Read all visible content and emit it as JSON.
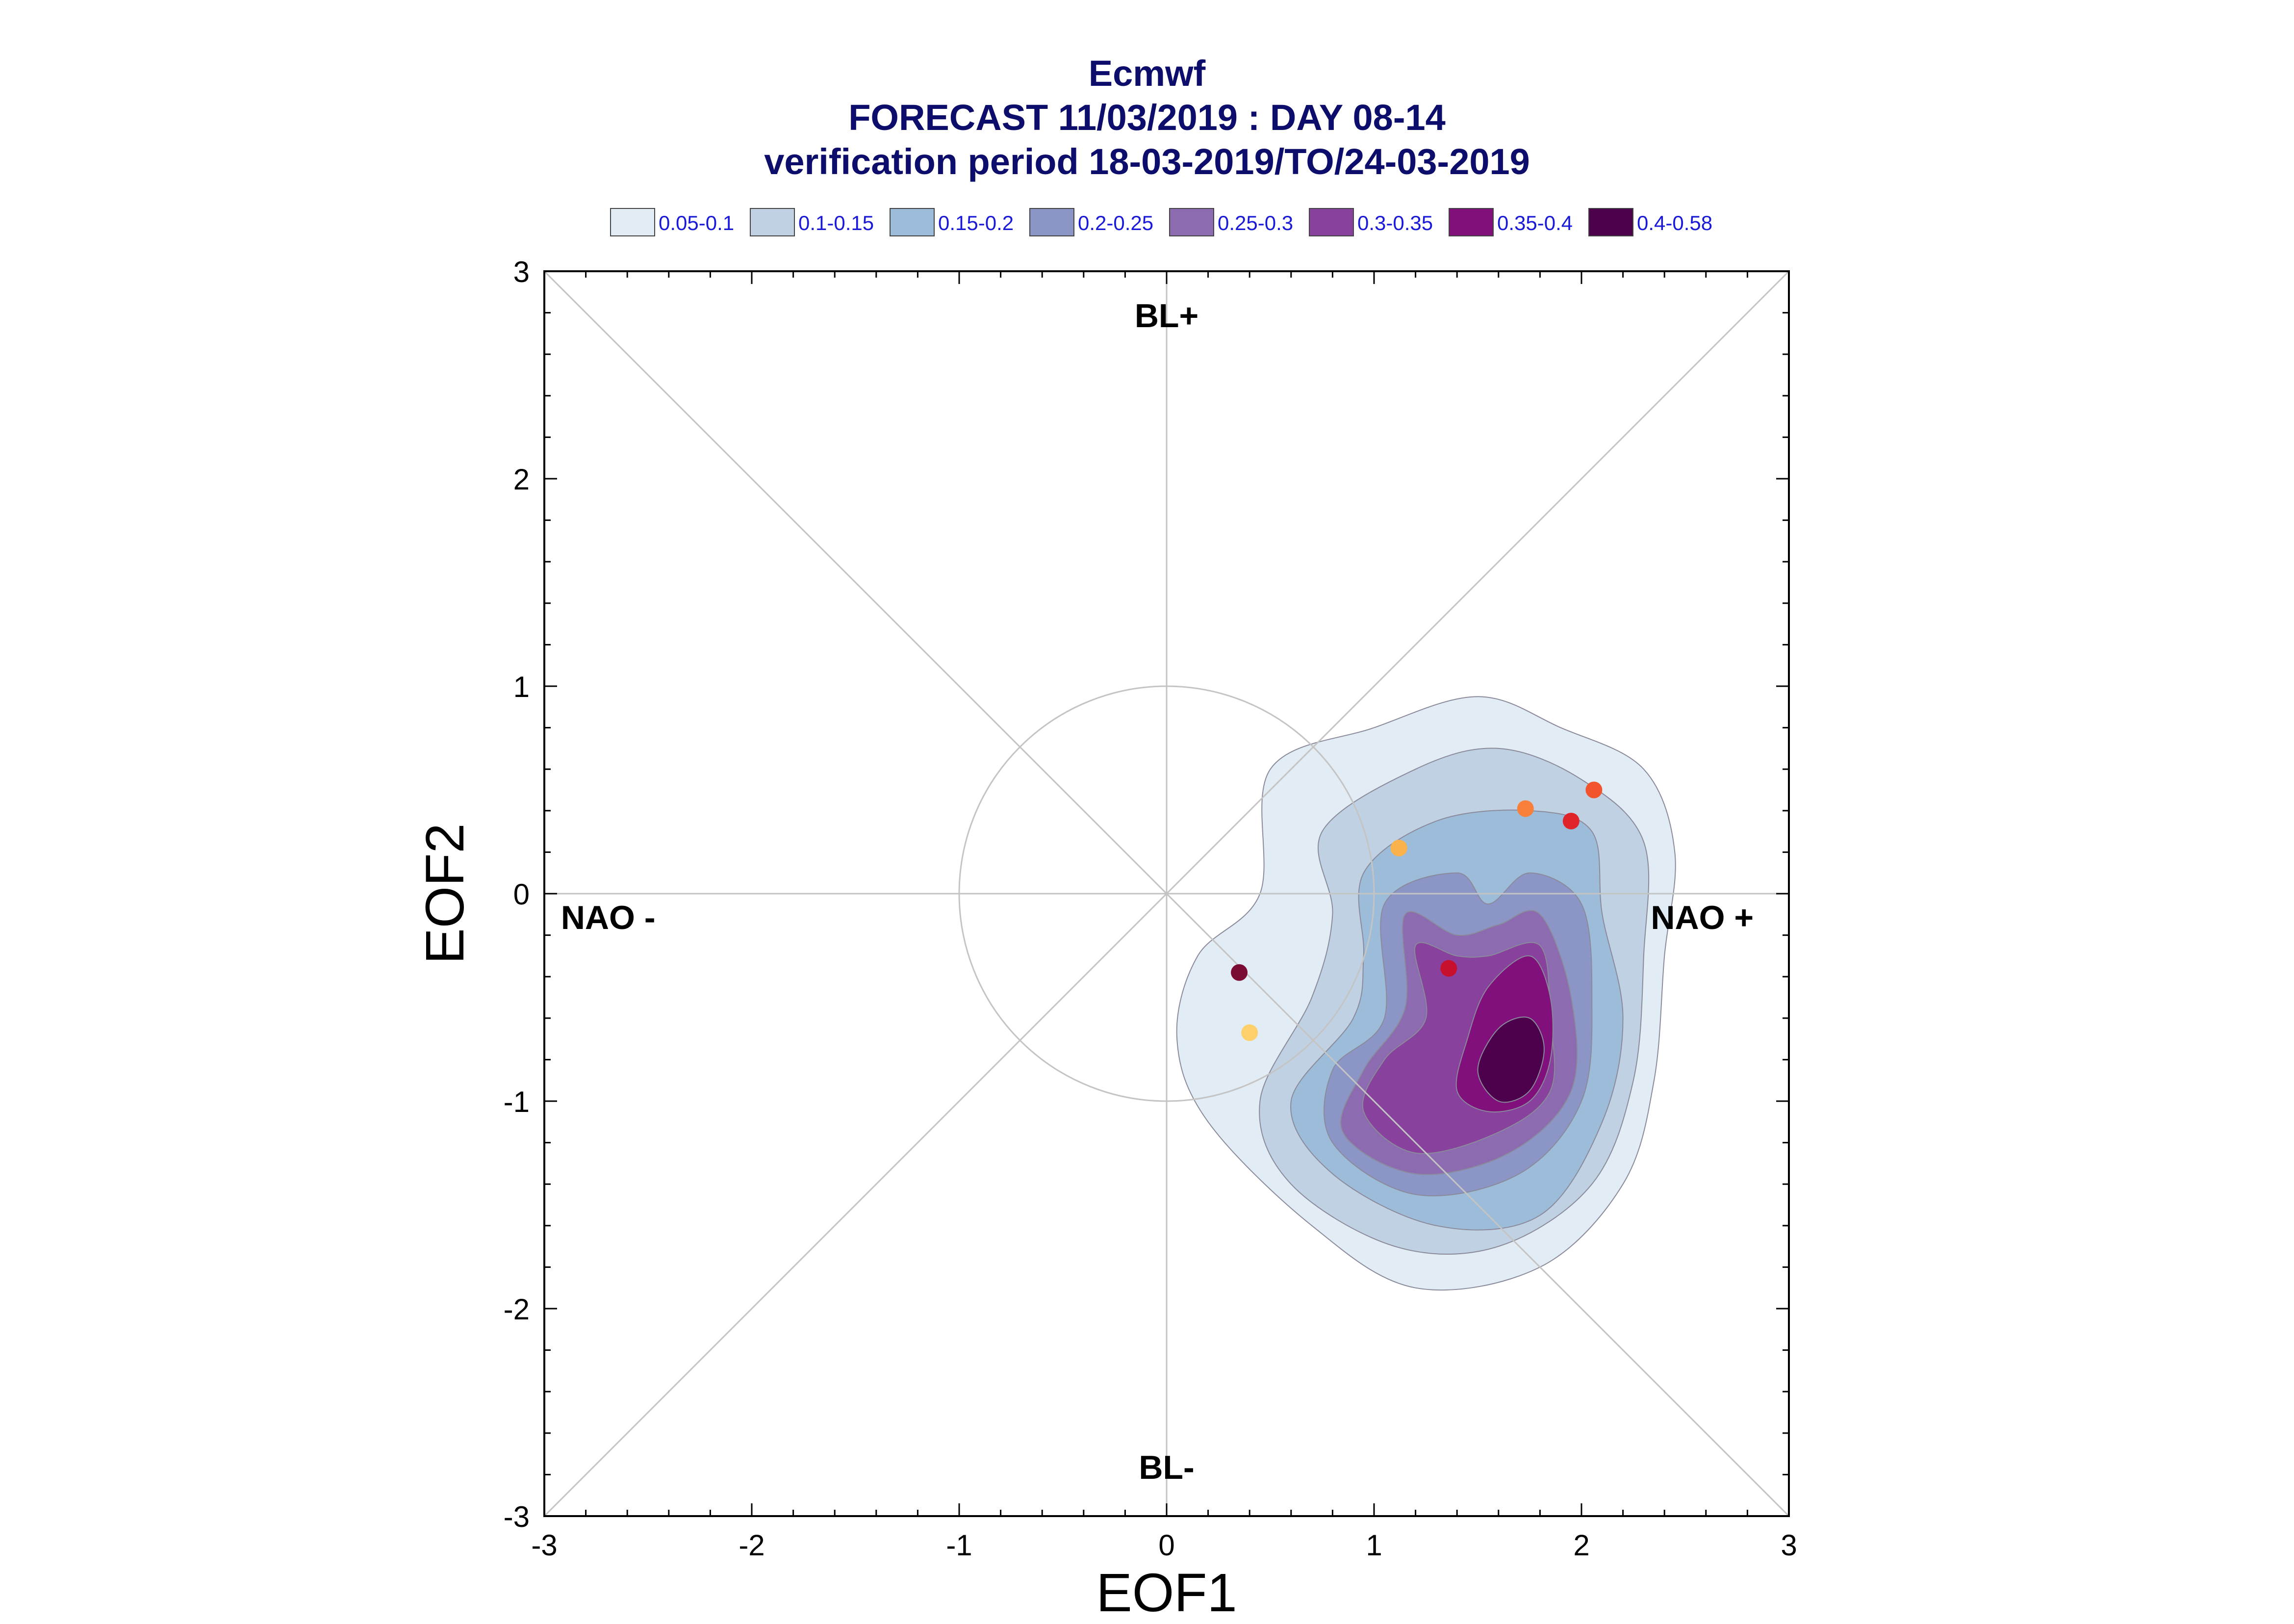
{
  "chart_data": {
    "type": "contour-scatter",
    "title": [
      "Ecmwf",
      "FORECAST 11/03/2019 : DAY 08-14",
      "verification period 18-03-2019/TO/24-03-2019"
    ],
    "xlabel": "EOF1",
    "ylabel": "EOF2",
    "xlim": [
      -3,
      3
    ],
    "ylim": [
      -3,
      3
    ],
    "xticks": [
      "-3",
      "-2",
      "-1",
      "0",
      "1",
      "2",
      "3"
    ],
    "yticks": [
      "-3",
      "-2",
      "-1",
      "0",
      "1",
      "2",
      "3"
    ],
    "regime_labels": {
      "top": "BL+",
      "bottom": "BL-",
      "left": "NAO -",
      "right": "NAO +"
    },
    "legend": [
      {
        "label": "0.05-0.1",
        "color": "#e2ecf4"
      },
      {
        "label": "0.1-0.15",
        "color": "#bfd1e3"
      },
      {
        "label": "0.15-0.2",
        "color": "#9cbcd9"
      },
      {
        "label": "0.2-0.25",
        "color": "#8c96c6"
      },
      {
        "label": "0.25-0.3",
        "color": "#8c6bb1"
      },
      {
        "label": "0.3-0.35",
        "color": "#88419d"
      },
      {
        "label": "0.35-0.4",
        "color": "#810f7c"
      },
      {
        "label": "0.4-0.58",
        "color": "#4d004b"
      }
    ],
    "density_levels": [
      {
        "level": 0.05,
        "color": "#e2ecf4",
        "points": [
          [
            0.5,
            0.6
          ],
          [
            1.0,
            0.8
          ],
          [
            1.5,
            0.95
          ],
          [
            1.9,
            0.8
          ],
          [
            2.3,
            0.6
          ],
          [
            2.45,
            0.2
          ],
          [
            2.4,
            -0.3
          ],
          [
            2.35,
            -0.9
          ],
          [
            2.2,
            -1.4
          ],
          [
            1.8,
            -1.8
          ],
          [
            1.2,
            -1.9
          ],
          [
            0.7,
            -1.6
          ],
          [
            0.2,
            -1.1
          ],
          [
            0.05,
            -0.7
          ],
          [
            0.15,
            -0.3
          ],
          [
            0.45,
            0.0
          ]
        ]
      },
      {
        "level": 0.1,
        "color": "#bfd1e3",
        "points": [
          [
            0.75,
            0.3
          ],
          [
            1.2,
            0.6
          ],
          [
            1.6,
            0.7
          ],
          [
            2.0,
            0.55
          ],
          [
            2.3,
            0.25
          ],
          [
            2.3,
            -0.3
          ],
          [
            2.25,
            -0.9
          ],
          [
            2.05,
            -1.4
          ],
          [
            1.6,
            -1.7
          ],
          [
            1.1,
            -1.7
          ],
          [
            0.6,
            -1.4
          ],
          [
            0.45,
            -1.0
          ],
          [
            0.7,
            -0.5
          ],
          [
            0.8,
            -0.1
          ]
        ]
      },
      {
        "level": 0.15,
        "color": "#9cbcd9",
        "points": [
          [
            0.95,
            0.1
          ],
          [
            1.3,
            0.35
          ],
          [
            1.75,
            0.4
          ],
          [
            2.05,
            0.3
          ],
          [
            2.1,
            -0.1
          ],
          [
            2.2,
            -0.6
          ],
          [
            2.1,
            -1.1
          ],
          [
            1.8,
            -1.55
          ],
          [
            1.3,
            -1.6
          ],
          [
            0.8,
            -1.35
          ],
          [
            0.6,
            -1.0
          ],
          [
            0.9,
            -0.6
          ],
          [
            0.95,
            -0.3
          ]
        ]
      },
      {
        "level": 0.2,
        "color": "#8c96c6",
        "points": [
          [
            1.05,
            -0.05
          ],
          [
            1.4,
            0.1
          ],
          [
            1.55,
            -0.05
          ],
          [
            1.75,
            0.1
          ],
          [
            2.0,
            -0.05
          ],
          [
            2.05,
            -0.5
          ],
          [
            2.0,
            -1.0
          ],
          [
            1.7,
            -1.35
          ],
          [
            1.2,
            -1.45
          ],
          [
            0.8,
            -1.2
          ],
          [
            0.8,
            -0.85
          ],
          [
            1.05,
            -0.6
          ]
        ]
      },
      {
        "level": 0.25,
        "color": "#8c6bb1",
        "points": [
          [
            1.15,
            -0.1
          ],
          [
            1.4,
            -0.2
          ],
          [
            1.6,
            -0.15
          ],
          [
            1.8,
            -0.1
          ],
          [
            1.95,
            -0.5
          ],
          [
            1.95,
            -0.95
          ],
          [
            1.65,
            -1.25
          ],
          [
            1.2,
            -1.35
          ],
          [
            0.85,
            -1.15
          ],
          [
            0.95,
            -0.85
          ],
          [
            1.15,
            -0.55
          ]
        ]
      },
      {
        "level": 0.3,
        "color": "#88419d",
        "points": [
          [
            1.2,
            -0.25
          ],
          [
            1.4,
            -0.3
          ],
          [
            1.55,
            -0.3
          ],
          [
            1.8,
            -0.25
          ],
          [
            1.85,
            -0.6
          ],
          [
            1.85,
            -0.95
          ],
          [
            1.6,
            -1.15
          ],
          [
            1.2,
            -1.25
          ],
          [
            0.95,
            -1.05
          ],
          [
            1.05,
            -0.8
          ],
          [
            1.25,
            -0.6
          ]
        ]
      },
      {
        "level": 0.35,
        "color": "#810f7c",
        "points": [
          [
            1.55,
            -0.45
          ],
          [
            1.75,
            -0.3
          ],
          [
            1.85,
            -0.5
          ],
          [
            1.85,
            -0.8
          ],
          [
            1.75,
            -1.0
          ],
          [
            1.55,
            -1.05
          ],
          [
            1.4,
            -0.95
          ],
          [
            1.45,
            -0.7
          ]
        ]
      },
      {
        "level": 0.4,
        "color": "#4d004b",
        "points": [
          [
            1.6,
            -0.65
          ],
          [
            1.75,
            -0.6
          ],
          [
            1.82,
            -0.75
          ],
          [
            1.75,
            -0.95
          ],
          [
            1.6,
            -1.0
          ],
          [
            1.5,
            -0.85
          ]
        ]
      }
    ],
    "points": [
      {
        "x": 0.35,
        "y": -0.38,
        "color": "#7a0c33"
      },
      {
        "x": 0.4,
        "y": -0.67,
        "color": "#fdd06b"
      },
      {
        "x": 1.12,
        "y": 0.22,
        "color": "#f9b24c"
      },
      {
        "x": 1.36,
        "y": -0.36,
        "color": "#c8102e"
      },
      {
        "x": 1.73,
        "y": 0.41,
        "color": "#f8803b"
      },
      {
        "x": 1.95,
        "y": 0.35,
        "color": "#e0252a"
      },
      {
        "x": 2.06,
        "y": 0.5,
        "color": "#f2542d"
      }
    ],
    "grid": false,
    "reference_lines": [
      "diagonals",
      "axes",
      "unit-circle"
    ],
    "legend_placement": "top"
  }
}
